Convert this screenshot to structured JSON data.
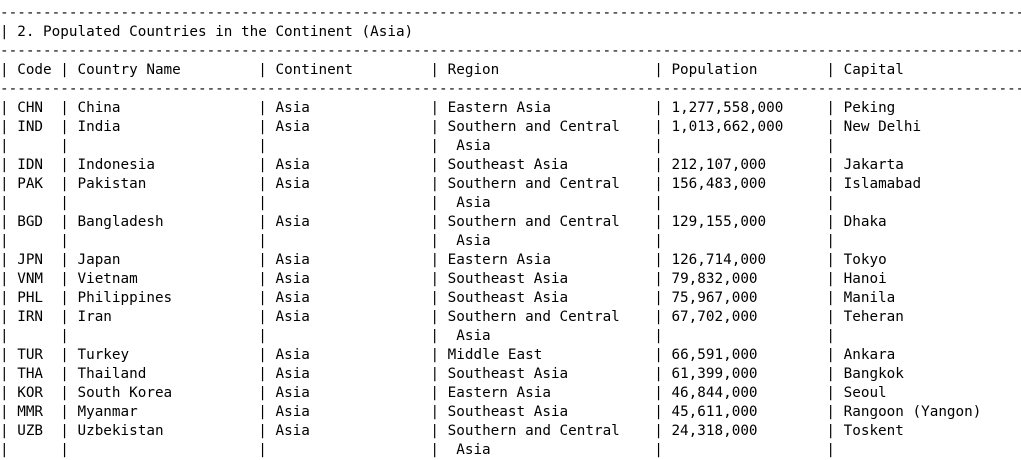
{
  "title": "2. Populated Countries in the Continent (Asia)",
  "columns": [
    "Code",
    "Country Name",
    "Continent",
    "Region",
    "Population",
    "Capital"
  ],
  "rows": [
    [
      "CHN",
      "China",
      "Asia",
      "Eastern Asia",
      "1,277,558,000",
      "Peking"
    ],
    [
      "IND",
      "India",
      "Asia",
      "Southern and Central Asia",
      "1,013,662,000",
      "New Delhi"
    ],
    [
      "IDN",
      "Indonesia",
      "Asia",
      "Southeast Asia",
      "212,107,000",
      "Jakarta"
    ],
    [
      "PAK",
      "Pakistan",
      "Asia",
      "Southern and Central Asia",
      "156,483,000",
      "Islamabad"
    ],
    [
      "BGD",
      "Bangladesh",
      "Asia",
      "Southern and Central Asia",
      "129,155,000",
      "Dhaka"
    ],
    [
      "JPN",
      "Japan",
      "Asia",
      "Eastern Asia",
      "126,714,000",
      "Tokyo"
    ],
    [
      "VNM",
      "Vietnam",
      "Asia",
      "Southeast Asia",
      "79,832,000",
      "Hanoi"
    ],
    [
      "PHL",
      "Philippines",
      "Asia",
      "Southeast Asia",
      "75,967,000",
      "Manila"
    ],
    [
      "IRN",
      "Iran",
      "Asia",
      "Southern and Central Asia",
      "67,702,000",
      "Teheran"
    ],
    [
      "TUR",
      "Turkey",
      "Asia",
      "Middle East",
      "66,591,000",
      "Ankara"
    ],
    [
      "THA",
      "Thailand",
      "Asia",
      "Southeast Asia",
      "61,399,000",
      "Bangkok"
    ],
    [
      "KOR",
      "South Korea",
      "Asia",
      "Eastern Asia",
      "46,844,000",
      "Seoul"
    ],
    [
      "MMR",
      "Myanmar",
      "Asia",
      "Southeast Asia",
      "45,611,000",
      "Rangoon (Yangon)"
    ],
    [
      "UZB",
      "Uzbekistan",
      "Asia",
      "Southern and Central Asia",
      "24,318,000",
      "Toskent"
    ]
  ]
}
